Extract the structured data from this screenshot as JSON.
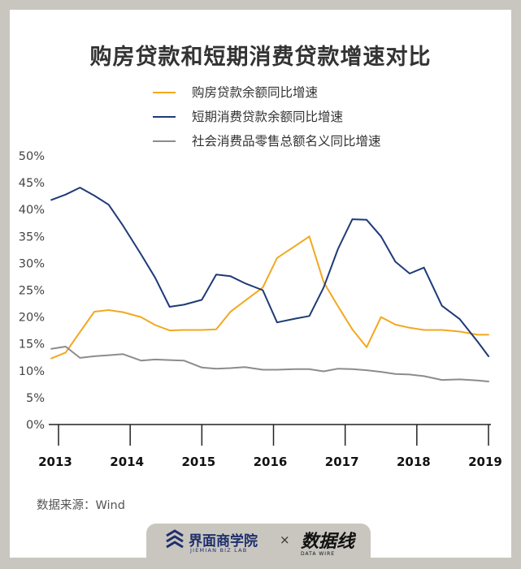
{
  "chart_data": {
    "type": "line",
    "title": "购房贷款和短期消费贷款增速对比",
    "x_labels": [
      "2013",
      "2014",
      "2015",
      "2016",
      "2017",
      "2018",
      "2019"
    ],
    "y_ticks": [
      "50%",
      "45%",
      "40%",
      "35%",
      "30%",
      "25%",
      "20%",
      "15%",
      "10%",
      "5%",
      "0%"
    ],
    "ylim": [
      0,
      50
    ],
    "xlim": [
      2013,
      2019
    ],
    "grid": false,
    "legend_position": "top",
    "series": [
      {
        "name": "购房贷款余额同比增速",
        "color": "#f2a81d",
        "x": [
          2012.9,
          2013.1,
          2013.3,
          2013.5,
          2013.7,
          2013.9,
          2014.15,
          2014.35,
          2014.55,
          2014.75,
          2015.0,
          2015.2,
          2015.4,
          2015.6,
          2015.85,
          2016.05,
          2016.3,
          2016.5,
          2016.7,
          2016.9,
          2017.1,
          2017.3,
          2017.5,
          2017.7,
          2017.9,
          2018.1,
          2018.35,
          2018.6,
          2018.85,
          2019.0
        ],
        "y": [
          12.3,
          13.4,
          17.2,
          21.0,
          21.3,
          20.9,
          20.0,
          18.5,
          17.5,
          17.6,
          17.6,
          17.7,
          21.0,
          23.0,
          25.5,
          31.0,
          33.2,
          35.0,
          26.5,
          22.0,
          17.7,
          14.4,
          20.0,
          18.6,
          18.0,
          17.6,
          17.6,
          17.3,
          16.7,
          16.7
        ]
      },
      {
        "name": "短期消费贷款余额同比增速",
        "color": "#1e3a78",
        "x": [
          2012.9,
          2013.1,
          2013.3,
          2013.5,
          2013.7,
          2013.9,
          2014.15,
          2014.35,
          2014.55,
          2014.75,
          2015.0,
          2015.2,
          2015.4,
          2015.6,
          2015.85,
          2016.05,
          2016.3,
          2016.5,
          2016.7,
          2016.9,
          2017.1,
          2017.3,
          2017.5,
          2017.7,
          2017.9,
          2018.1,
          2018.35,
          2018.6,
          2018.85,
          2019.0
        ],
        "y": [
          41.8,
          42.8,
          44.1,
          42.6,
          40.9,
          37.0,
          31.7,
          27.3,
          21.9,
          22.3,
          23.2,
          27.9,
          27.6,
          26.3,
          25.0,
          19.0,
          19.7,
          20.2,
          25.5,
          32.7,
          38.2,
          38.1,
          35.0,
          30.3,
          28.1,
          29.2,
          22.1,
          19.6,
          15.4,
          12.7
        ]
      },
      {
        "name": "社会消费品零售总额名义同比增速",
        "color": "#8c8c8c",
        "x": [
          2012.9,
          2013.1,
          2013.3,
          2013.5,
          2013.7,
          2013.9,
          2014.15,
          2014.35,
          2014.55,
          2014.75,
          2015.0,
          2015.2,
          2015.4,
          2015.6,
          2015.85,
          2016.05,
          2016.3,
          2016.5,
          2016.7,
          2016.9,
          2017.1,
          2017.3,
          2017.5,
          2017.7,
          2017.9,
          2018.1,
          2018.35,
          2018.6,
          2018.85,
          2019.0
        ],
        "y": [
          14.1,
          14.5,
          12.4,
          12.7,
          12.9,
          13.1,
          11.9,
          12.1,
          12.0,
          11.9,
          10.6,
          10.4,
          10.5,
          10.7,
          10.2,
          10.2,
          10.3,
          10.3,
          9.9,
          10.4,
          10.3,
          10.1,
          9.8,
          9.4,
          9.3,
          9.0,
          8.3,
          8.4,
          8.2,
          8.0
        ]
      }
    ]
  },
  "source": "数据来源：Wind",
  "footer": {
    "brand_name": "界面商学院",
    "brand_sub": "JIEMIAN BIZ LAB",
    "times": "×",
    "dw_name": "数据线",
    "dw_sub": "DATA WIRE"
  }
}
